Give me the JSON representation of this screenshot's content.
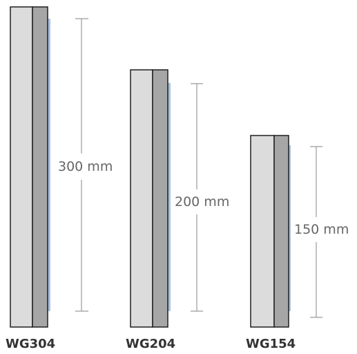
{
  "products": [
    {
      "model": "WG304",
      "height_label": "300 mm",
      "height_mm": 300
    },
    {
      "model": "WG204",
      "height_label": "200 mm",
      "height_mm": 200
    },
    {
      "model": "WG154",
      "height_label": "150 mm",
      "height_mm": 150
    }
  ],
  "colors": {
    "front_panel": "#dcdcdc",
    "side_panel": "#a6a6a6",
    "outline": "#1e1e1e",
    "edge_accent": "#a9c2e3",
    "dimension_line": "#9a9a9a",
    "dimension_text": "#666666",
    "model_text": "#333333"
  }
}
